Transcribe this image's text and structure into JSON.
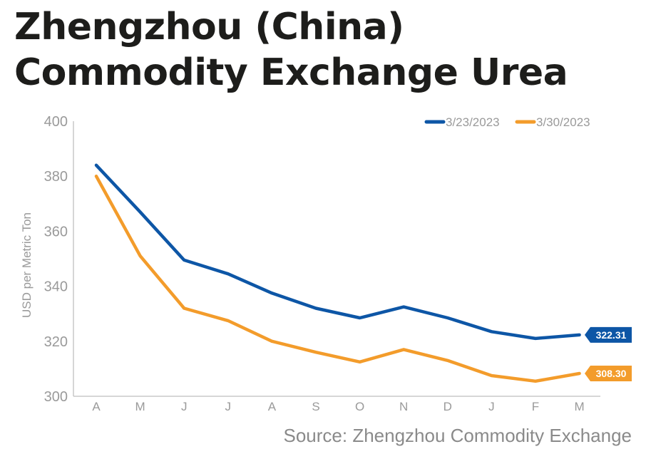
{
  "title": "Zhengzhou (China) Commodity Exchange Urea",
  "source": "Source: Zhengzhou Commodity Exchange",
  "chart_data": {
    "type": "line",
    "title": "Zhengzhou (China) Commodity Exchange Urea",
    "xlabel": "",
    "ylabel": "USD per Metric Ton",
    "categories": [
      "A",
      "M",
      "J",
      "J",
      "A",
      "S",
      "O",
      "N",
      "D",
      "J",
      "F",
      "M"
    ],
    "ylim": [
      300,
      400
    ],
    "yticks": [
      300,
      320,
      340,
      360,
      380,
      400
    ],
    "grid": false,
    "legend_position": "top-right",
    "series": [
      {
        "name": "3/23/2023",
        "color": "#0d56a6",
        "values": [
          384,
          367,
          349.5,
          344.5,
          337.5,
          332,
          328.5,
          332.5,
          328.5,
          323.5,
          321,
          322.31
        ],
        "end_label": "322.31"
      },
      {
        "name": "3/30/2023",
        "color": "#f39c2b",
        "values": [
          380,
          351,
          332,
          327.5,
          320,
          316,
          312.5,
          317,
          313,
          307.5,
          305.5,
          308.3
        ],
        "end_label": "308.30"
      }
    ]
  }
}
